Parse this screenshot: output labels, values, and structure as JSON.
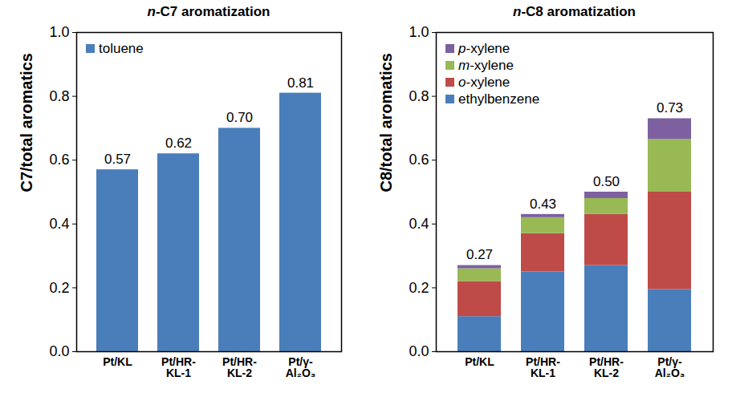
{
  "chart_data": [
    {
      "type": "bar",
      "title": "n-C7 aromatization",
      "categories": [
        "Pt/KL",
        "Pt/HR-KL-1",
        "Pt/HR-KL-2",
        "Pt/γ-Al₂O₃"
      ],
      "series": [
        {
          "name": "toluene",
          "color": "#4a7ebb",
          "values": [
            0.57,
            0.62,
            0.7,
            0.81
          ],
          "value_labels": [
            "0.57",
            "0.62",
            "0.70",
            "0.81"
          ]
        }
      ],
      "ylabel": "C7/total aromatics",
      "ylim": [
        0,
        1
      ],
      "yticks": [
        {
          "value": 0,
          "label": "0.0"
        },
        {
          "value": 0.2,
          "label": "0.2"
        },
        {
          "value": 0.4,
          "label": "0.4"
        },
        {
          "value": 0.6,
          "label": "0.6"
        },
        {
          "value": 0.8,
          "label": "0.8"
        },
        {
          "value": 1,
          "label": "1.0"
        }
      ],
      "data_labels": true,
      "legend": "upper left",
      "grid": false
    },
    {
      "type": "bar",
      "title": "n-C8 aromatization",
      "categories": [
        "Pt/KL",
        "Pt/HR-KL-1",
        "Pt/HR-KL-2",
        "Pt/γ-Al₂O₃"
      ],
      "series": [
        {
          "name": "ethylbenzene",
          "color": "#4a7ebb",
          "values": [
            0.11,
            0.25,
            0.27,
            0.195
          ]
        },
        {
          "name": "o-xylene",
          "color": "#be4b48",
          "values": [
            0.11,
            0.12,
            0.16,
            0.305
          ]
        },
        {
          "name": "m-xylene",
          "color": "#98b954",
          "values": [
            0.04,
            0.05,
            0.05,
            0.165
          ]
        },
        {
          "name": "p-xylene",
          "color": "#7d60a0",
          "values": [
            0.01,
            0.01,
            0.02,
            0.065
          ]
        }
      ],
      "totals": [
        0.27,
        0.43,
        0.5,
        0.73
      ],
      "total_labels": [
        "0.27",
        "0.43",
        "0.50",
        "0.73"
      ],
      "ylabel": "C8/total aromatics",
      "ylim": [
        0,
        1
      ],
      "yticks": [
        {
          "value": 0,
          "label": "0.0"
        },
        {
          "value": 0.2,
          "label": "0.2"
        },
        {
          "value": 0.4,
          "label": "0.4"
        },
        {
          "value": 0.6,
          "label": "0.6"
        },
        {
          "value": 0.8,
          "label": "0.8"
        },
        {
          "value": 1,
          "label": "1.0"
        }
      ],
      "stacked": true,
      "legend": "upper left",
      "grid": false
    }
  ]
}
